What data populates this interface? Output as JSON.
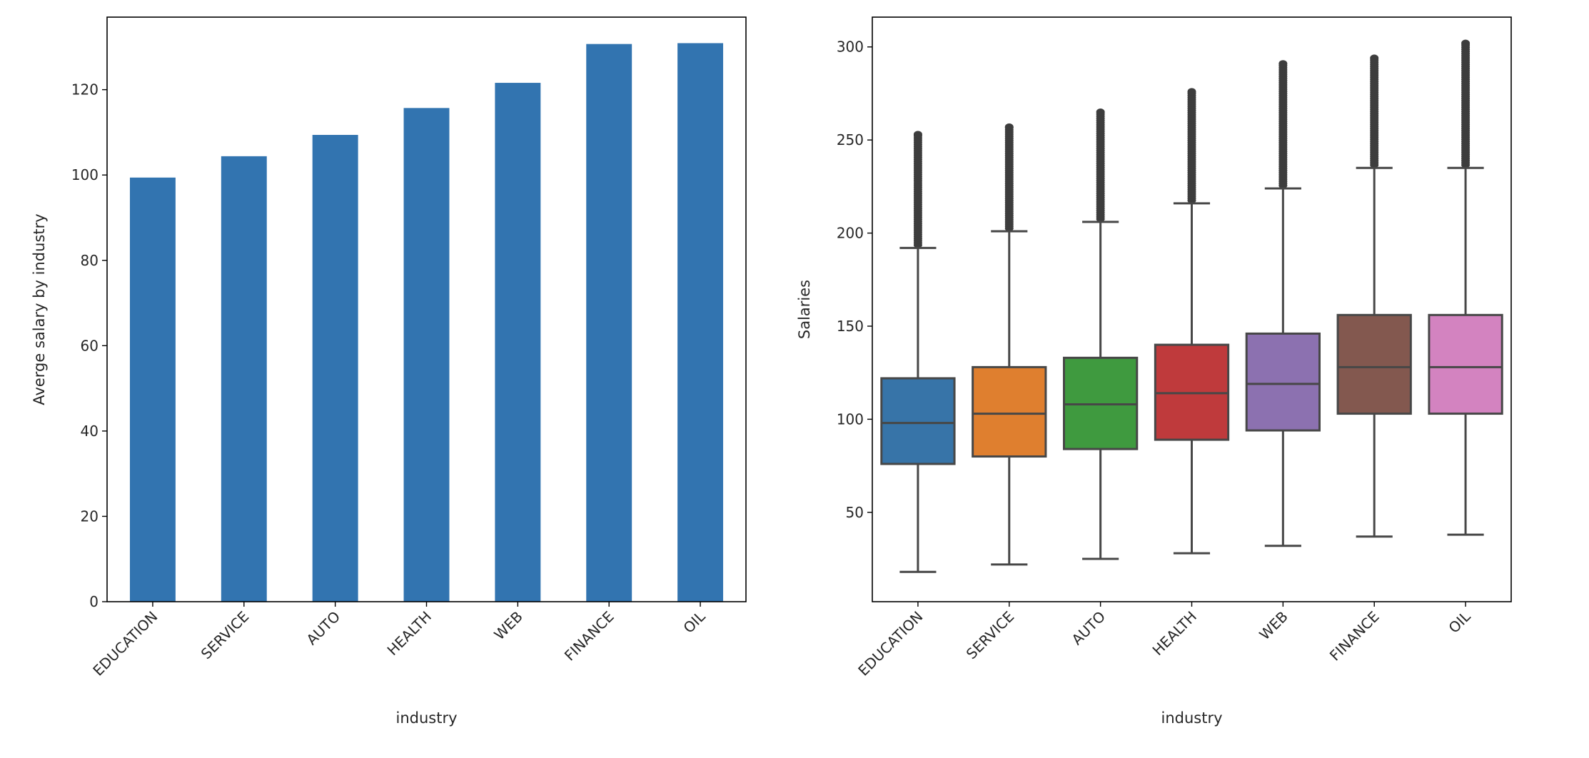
{
  "chart_data": [
    {
      "type": "bar",
      "xlabel": "industry",
      "ylabel": "Averge salary by industry",
      "categories": [
        "EDUCATION",
        "SERVICE",
        "AUTO",
        "HEALTH",
        "WEB",
        "FINANCE",
        "OIL"
      ],
      "values": [
        99.4,
        104.4,
        109.4,
        115.7,
        121.6,
        130.7,
        130.9
      ],
      "ylim": [
        0,
        137
      ],
      "yticks": [
        0,
        20,
        40,
        60,
        80,
        100,
        120
      ],
      "grid": false,
      "color": "#3274b0"
    },
    {
      "type": "box",
      "xlabel": "industry",
      "ylabel": "Salaries",
      "categories": [
        "EDUCATION",
        "SERVICE",
        "AUTO",
        "HEALTH",
        "WEB",
        "FINANCE",
        "OIL"
      ],
      "ylim": [
        2,
        316
      ],
      "yticks": [
        50,
        100,
        150,
        200,
        250,
        300
      ],
      "grid": false,
      "boxes": [
        {
          "whisker_low": 18,
          "q1": 76,
          "median": 98,
          "q3": 122,
          "whisker_high": 192,
          "outlier_max": 253,
          "color": "#3774a8"
        },
        {
          "whisker_low": 22,
          "q1": 80,
          "median": 103,
          "q3": 128,
          "whisker_high": 201,
          "outlier_max": 257,
          "color": "#df7f2f"
        },
        {
          "whisker_low": 25,
          "q1": 84,
          "median": 108,
          "q3": 133,
          "whisker_high": 206,
          "outlier_max": 265,
          "color": "#3f9a3f"
        },
        {
          "whisker_low": 28,
          "q1": 89,
          "median": 114,
          "q3": 140,
          "whisker_high": 216,
          "outlier_max": 276,
          "color": "#bf3a3c"
        },
        {
          "whisker_low": 32,
          "q1": 94,
          "median": 119,
          "q3": 146,
          "whisker_high": 224,
          "outlier_max": 291,
          "color": "#8c71b0"
        },
        {
          "whisker_low": 37,
          "q1": 103,
          "median": 128,
          "q3": 156,
          "whisker_high": 235,
          "outlier_max": 294,
          "color": "#83584f"
        },
        {
          "whisker_low": 38,
          "q1": 103,
          "median": 128,
          "q3": 156,
          "whisker_high": 235,
          "outlier_max": 302,
          "color": "#d383c0"
        }
      ]
    }
  ]
}
